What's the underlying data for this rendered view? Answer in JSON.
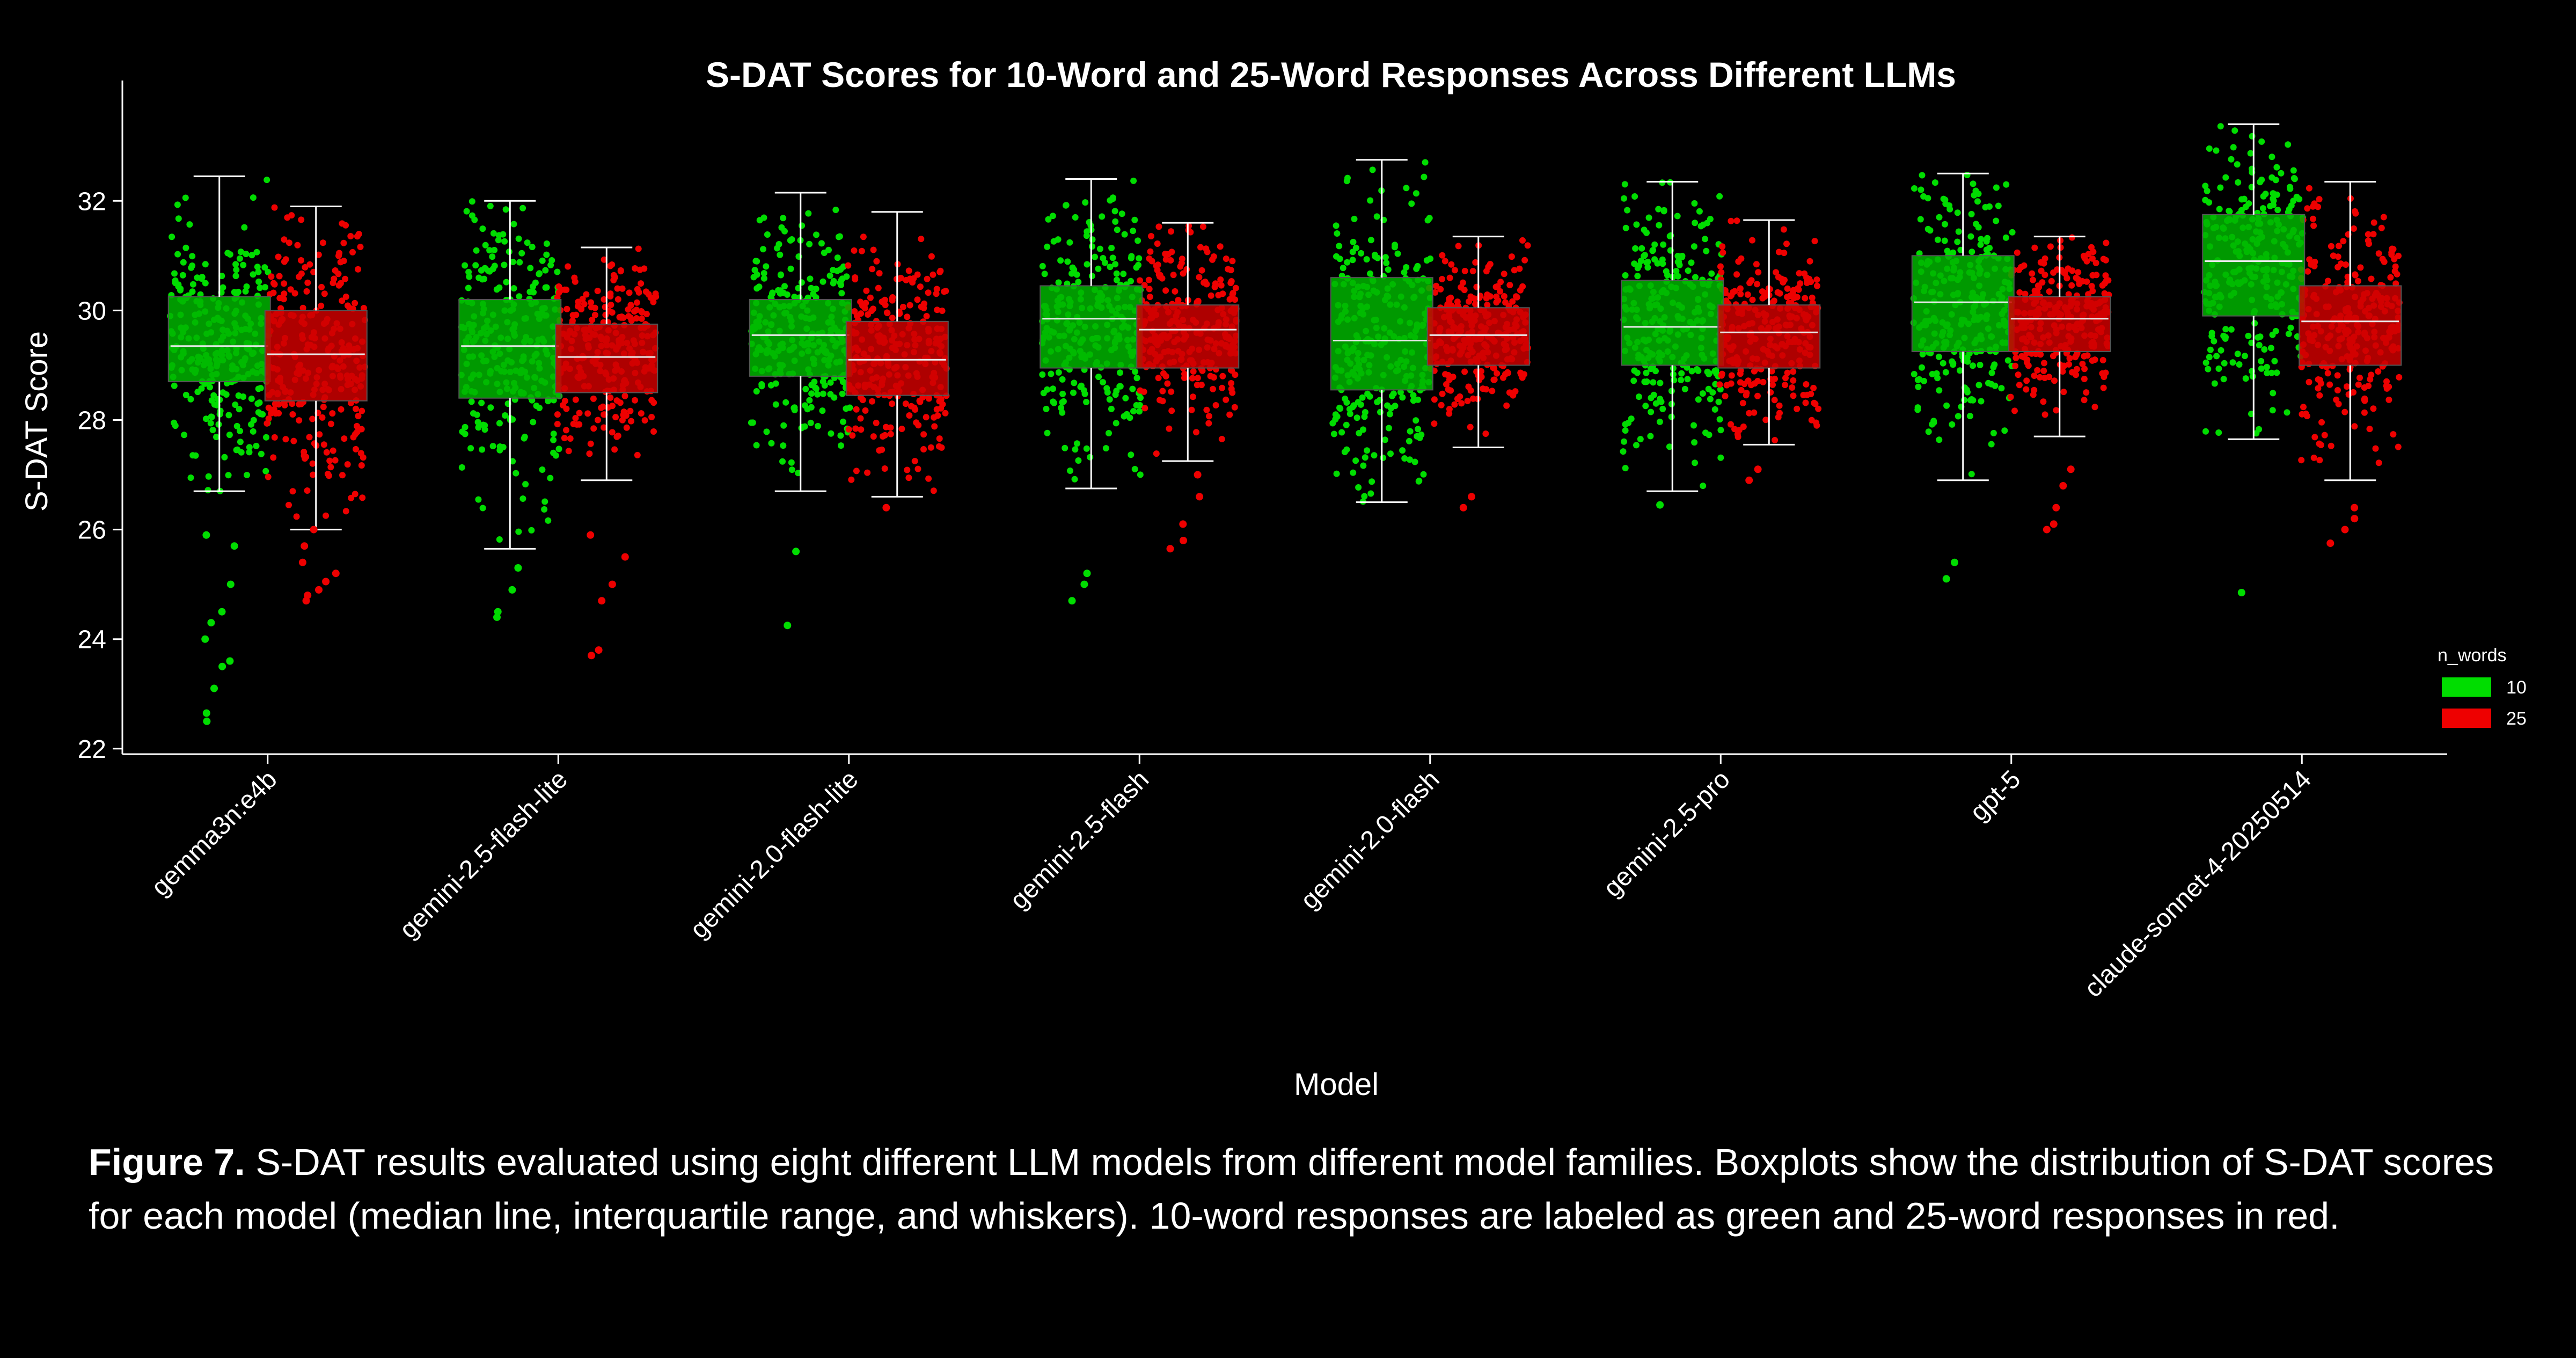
{
  "chart_data": {
    "type": "box",
    "title": "S-DAT Scores for 10-Word and 25-Word Responses Across Different LLMs",
    "xlabel": "Model",
    "ylabel": "S-DAT Score",
    "ylim": [
      21.9,
      34.1
    ],
    "yticks": [
      22,
      24,
      26,
      28,
      30,
      32
    ],
    "grid": false,
    "legend": {
      "title": "n_words",
      "position": "right",
      "entries": [
        "10",
        "25"
      ]
    },
    "colors": {
      "10": "#00dd00",
      "25": "#ee0000",
      "10_box": "#00b400",
      "25_box": "#cc0000",
      "whisker": "#ffffff",
      "axis": "#ffffff"
    },
    "categories": [
      "gemma3n:e4b",
      "gemini-2.5-flash-lite",
      "gemini-2.0-flash-lite",
      "gemini-2.5-flash",
      "gemini-2.0-flash",
      "gemini-2.5-pro",
      "gpt-5",
      "claude-sonnet-4-20250514"
    ],
    "series": [
      {
        "name": "10",
        "boxes": [
          {
            "whislo": 26.7,
            "q1": 28.7,
            "median": 29.35,
            "q3": 30.25,
            "whishi": 32.45
          },
          {
            "whislo": 25.65,
            "q1": 28.4,
            "median": 29.35,
            "q3": 30.2,
            "whishi": 32.0
          },
          {
            "whislo": 26.7,
            "q1": 28.8,
            "median": 29.55,
            "q3": 30.2,
            "whishi": 32.15
          },
          {
            "whislo": 26.75,
            "q1": 28.95,
            "median": 29.85,
            "q3": 30.45,
            "whishi": 32.4
          },
          {
            "whislo": 26.5,
            "q1": 28.55,
            "median": 29.45,
            "q3": 30.6,
            "whishi": 32.75
          },
          {
            "whislo": 26.7,
            "q1": 29.0,
            "median": 29.7,
            "q3": 30.55,
            "whishi": 32.35
          },
          {
            "whislo": 26.9,
            "q1": 29.25,
            "median": 30.15,
            "q3": 31.0,
            "whishi": 32.5
          },
          {
            "whislo": 27.65,
            "q1": 29.9,
            "median": 30.9,
            "q3": 31.75,
            "whishi": 33.4
          }
        ]
      },
      {
        "name": "25",
        "boxes": [
          {
            "whislo": 26.0,
            "q1": 28.35,
            "median": 29.2,
            "q3": 30.0,
            "whishi": 31.9
          },
          {
            "whislo": 26.9,
            "q1": 28.5,
            "median": 29.15,
            "q3": 29.75,
            "whishi": 31.15
          },
          {
            "whislo": 26.6,
            "q1": 28.45,
            "median": 29.1,
            "q3": 29.8,
            "whishi": 31.8
          },
          {
            "whislo": 27.25,
            "q1": 28.95,
            "median": 29.65,
            "q3": 30.1,
            "whishi": 31.6
          },
          {
            "whislo": 27.5,
            "q1": 29.0,
            "median": 29.55,
            "q3": 30.05,
            "whishi": 31.35
          },
          {
            "whislo": 27.55,
            "q1": 28.95,
            "median": 29.6,
            "q3": 30.1,
            "whishi": 31.65
          },
          {
            "whislo": 27.7,
            "q1": 29.25,
            "median": 29.85,
            "q3": 30.25,
            "whishi": 31.35
          },
          {
            "whislo": 26.9,
            "q1": 29.0,
            "median": 29.8,
            "q3": 30.45,
            "whishi": 32.35
          }
        ]
      }
    ],
    "outliers": {
      "10": [
        [
          22.5,
          22.65,
          23.1,
          23.5,
          23.6,
          24.0,
          24.3,
          24.5,
          25.0,
          25.7,
          25.9
        ],
        [
          24.4,
          24.5,
          24.9,
          25.3
        ],
        [
          24.25,
          25.6
        ],
        [
          24.7,
          25.0,
          25.2
        ],
        [],
        [
          26.45
        ],
        [
          25.1,
          25.4
        ],
        [
          24.85
        ]
      ],
      "25": [
        [
          24.7,
          24.8,
          24.9,
          25.05,
          25.2,
          25.4,
          25.7,
          26.0
        ],
        [
          23.7,
          23.8,
          24.7,
          25.0,
          25.5,
          25.9
        ],
        [
          26.4
        ],
        [
          25.65,
          25.8,
          26.1,
          26.6,
          27.0
        ],
        [
          26.4,
          26.6
        ],
        [
          26.9,
          27.1
        ],
        [
          26.0,
          26.1,
          26.4,
          26.8,
          27.1
        ],
        [
          25.75,
          26.0,
          26.2,
          26.4
        ]
      ]
    }
  },
  "caption": {
    "label": "Figure 7.",
    "text": "S-DAT results evaluated using eight different LLM models from different model families. Boxplots show the distribution of S-DAT scores for each model (median line, interquartile range, and whiskers). 10-word responses are labeled as green and 25-word responses in red."
  }
}
